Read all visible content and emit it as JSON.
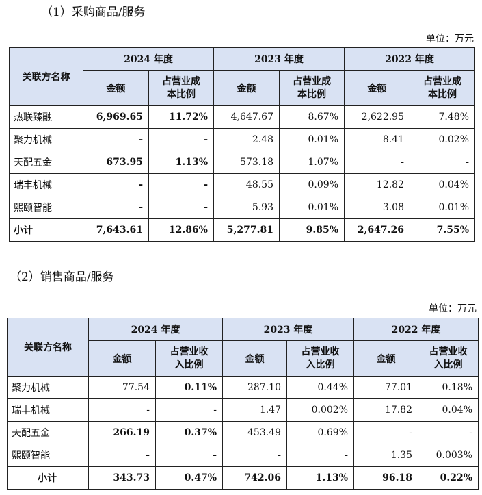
{
  "purchase": {
    "title": "（1）采购商品/服务",
    "unit": "单位：万元",
    "headers": {
      "party": "关联方名称",
      "y2024": "2024 年度",
      "y2023": "2023 年度",
      "y2022": "2022 年度",
      "amount": "金额",
      "ratio_line1": "占营业成",
      "ratio_line2": "本比例"
    },
    "rows": [
      {
        "name": "热联臻融",
        "a2024": "6,969.65",
        "r2024": "11.72%",
        "a2023": "4,647.67",
        "r2023": "8.67%",
        "a2022": "2,622.95",
        "r2022": "7.48%"
      },
      {
        "name": "聚力机械",
        "a2024": "-",
        "r2024": "-",
        "a2023": "2.48",
        "r2023": "0.01%",
        "a2022": "8.41",
        "r2022": "0.02%"
      },
      {
        "name": "天配五金",
        "a2024": "673.95",
        "r2024": "1.13%",
        "a2023": "573.18",
        "r2023": "1.07%",
        "a2022": "-",
        "r2022": "-"
      },
      {
        "name": "瑞丰机械",
        "a2024": "-",
        "r2024": "-",
        "a2023": "48.55",
        "r2023": "0.09%",
        "a2022": "12.82",
        "r2022": "0.04%"
      },
      {
        "name": "熙颐智能",
        "a2024": "-",
        "r2024": "-",
        "a2023": "5.93",
        "r2023": "0.01%",
        "a2022": "3.08",
        "r2022": "0.01%"
      }
    ],
    "total": {
      "name": "小计",
      "a2024": "7,643.61",
      "r2024": "12.86%",
      "a2023": "5,277.81",
      "r2023": "9.85%",
      "a2022": "2,647.26",
      "r2022": "7.55%"
    }
  },
  "sales": {
    "title": "（2）销售商品/服务",
    "unit": "单位：万元",
    "headers": {
      "party": "关联方名称",
      "y2024": "2024 年度",
      "y2023": "2023 年度",
      "y2022": "2022 年度",
      "amount": "金额",
      "ratio_line1": "占营业收",
      "ratio_line2": "入比例"
    },
    "rows": [
      {
        "name": "聚力机械",
        "a2024": "77.54",
        "r2024": "0.11%",
        "a2023": "287.10",
        "r2023": "0.44%",
        "a2022": "77.01",
        "r2022": "0.18%"
      },
      {
        "name": "瑞丰机械",
        "a2024": "-",
        "r2024": "-",
        "a2023": "1.47",
        "r2023": "0.002%",
        "a2022": "17.82",
        "r2022": "0.04%"
      },
      {
        "name": "天配五金",
        "a2024": "266.19",
        "r2024": "0.37%",
        "a2023": "453.49",
        "r2023": "0.69%",
        "a2022": "-",
        "r2022": "-"
      },
      {
        "name": "熙颐智能",
        "a2024": "-",
        "r2024": "-",
        "a2023": "-",
        "r2023": "-",
        "a2022": "1.35",
        "r2022": "0.003%"
      }
    ],
    "total": {
      "name": "小计",
      "a2024": "343.73",
      "r2024": "0.47%",
      "a2023": "742.06",
      "r2023": "1.13%",
      "a2022": "96.18",
      "r2022": "0.22%"
    }
  }
}
